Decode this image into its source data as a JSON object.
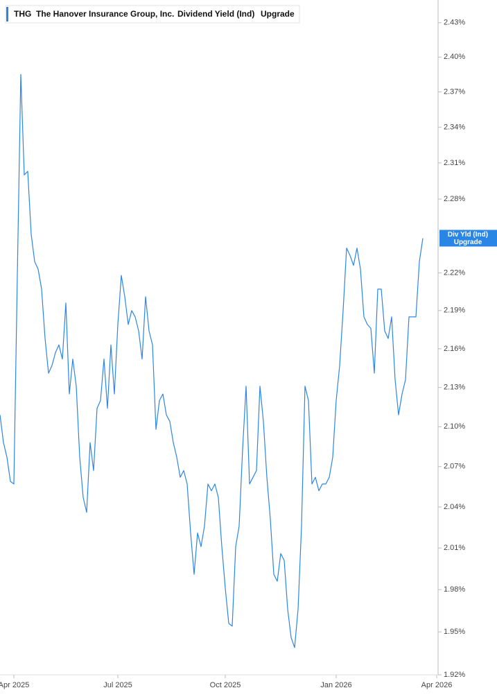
{
  "chart_data": {
    "type": "line",
    "ticker": "THG",
    "company": "The Hanover Insurance Group, Inc.",
    "log_scale": true,
    "series": [
      {
        "name": "Dividend Yield (Ind)",
        "short_name": "Div Yld (Ind)",
        "source": "Upgrade",
        "color": "#2a86e6",
        "values": [
          2.109,
          2.088,
          2.077,
          2.059,
          2.057,
          2.218,
          2.385,
          2.3,
          2.303,
          2.251,
          2.229,
          2.223,
          2.207,
          2.168,
          2.141,
          2.147,
          2.157,
          2.163,
          2.152,
          2.196,
          2.125,
          2.152,
          2.131,
          2.077,
          2.047,
          2.036,
          2.088,
          2.067,
          2.114,
          2.12,
          2.152,
          2.114,
          2.163,
          2.125,
          2.179,
          2.218,
          2.201,
          2.179,
          2.19,
          2.185,
          2.174,
          2.152,
          2.201,
          2.174,
          2.163,
          2.098,
          2.12,
          2.125,
          2.109,
          2.104,
          2.088,
          2.077,
          2.062,
          2.067,
          2.057,
          2.021,
          1.991,
          2.021,
          2.011,
          2.026,
          2.057,
          2.052,
          2.057,
          2.047,
          2.011,
          1.981,
          1.956,
          1.954,
          2.011,
          2.026,
          2.083,
          2.131,
          2.057,
          2.062,
          2.067,
          2.131,
          2.104,
          2.062,
          2.031,
          1.991,
          1.986,
          2.006,
          2.001,
          1.966,
          1.946,
          1.939,
          1.966,
          2.026,
          2.131,
          2.12,
          2.057,
          2.062,
          2.052,
          2.057,
          2.057,
          2.062,
          2.077,
          2.12,
          2.147,
          2.19,
          2.24,
          2.234,
          2.226,
          2.24,
          2.223,
          2.185,
          2.179,
          2.176,
          2.141,
          2.207,
          2.207,
          2.174,
          2.168,
          2.185,
          2.136,
          2.109,
          2.125,
          2.136,
          2.185,
          2.185,
          2.185,
          2.229,
          2.248,
          null,
          null,
          null,
          null
        ]
      }
    ],
    "categories": [
      null,
      null,
      null,
      null,
      "Apr 2025",
      null,
      null,
      null,
      null,
      null,
      null,
      null,
      null,
      null,
      null,
      null,
      null,
      null,
      null,
      null,
      null,
      null,
      null,
      null,
      null,
      null,
      null,
      null,
      null,
      null,
      null,
      null,
      null,
      null,
      "Jul 2025",
      null,
      null,
      null,
      null,
      null,
      null,
      null,
      null,
      null,
      null,
      null,
      null,
      null,
      null,
      null,
      null,
      null,
      null,
      null,
      null,
      null,
      null,
      null,
      null,
      null,
      null,
      null,
      null,
      null,
      null,
      "Oct 2025",
      null,
      null,
      null,
      null,
      null,
      null,
      null,
      null,
      null,
      null,
      null,
      null,
      null,
      null,
      null,
      null,
      null,
      null,
      null,
      null,
      null,
      null,
      null,
      null,
      null,
      null,
      null,
      null,
      null,
      null,
      null,
      "Jan 2026",
      null,
      null,
      null,
      null,
      null,
      null,
      null,
      null,
      null,
      null,
      null,
      null,
      null,
      null,
      null,
      null,
      null,
      null,
      null,
      null,
      null,
      null,
      null,
      null,
      null,
      null,
      null,
      null,
      "Apr 2026"
    ],
    "ylim": [
      1.92,
      2.45
    ],
    "yticks": [
      {
        "value": 1.92,
        "label": "1.92%"
      },
      {
        "value": 1.95,
        "label": "1.95%"
      },
      {
        "value": 1.98,
        "label": "1.98%"
      },
      {
        "value": 2.01,
        "label": "2.01%"
      },
      {
        "value": 2.04,
        "label": "2.04%"
      },
      {
        "value": 2.07,
        "label": "2.07%"
      },
      {
        "value": 2.1,
        "label": "2.10%"
      },
      {
        "value": 2.13,
        "label": "2.13%"
      },
      {
        "value": 2.16,
        "label": "2.16%"
      },
      {
        "value": 2.19,
        "label": "2.19%"
      },
      {
        "value": 2.22,
        "label": "2.22%"
      },
      {
        "value": 2.28,
        "label": "2.28%"
      },
      {
        "value": 2.31,
        "label": "2.31%"
      },
      {
        "value": 2.34,
        "label": "2.34%"
      },
      {
        "value": 2.37,
        "label": "2.37%"
      },
      {
        "value": 2.4,
        "label": "2.40%"
      },
      {
        "value": 2.43,
        "label": "2.43%"
      }
    ]
  }
}
